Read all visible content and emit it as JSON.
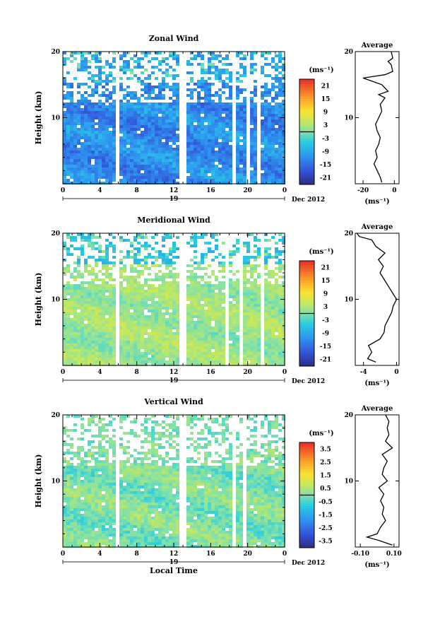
{
  "chart_data": [
    {
      "type": "heatmap",
      "title": "Zonal Wind",
      "ylabel": "Height (km)",
      "unit_label": "(ms⁻¹)",
      "x_ticks": [
        "0",
        "4",
        "8",
        "12",
        "16",
        "20",
        "0"
      ],
      "x_range": [
        0,
        24
      ],
      "y_ticks": [
        "20",
        "10"
      ],
      "y_range": [
        0,
        20
      ],
      "date_label": "19",
      "month_label": "Dec 2012",
      "colorbar": {
        "ticks": [
          "21",
          "15",
          "9",
          "3",
          "-3",
          "-9",
          "-15",
          "-21"
        ],
        "range": [
          -24,
          24
        ]
      },
      "base_value": -12,
      "base_spread": 7,
      "upper_values": [
        -6,
        -3,
        -10
      ],
      "gaps_hours": [
        [
          5.8,
          6.3
        ],
        [
          12.8,
          13.3
        ],
        [
          18.3,
          18.8
        ],
        [
          19.9,
          20.4
        ],
        [
          21.0,
          21.5
        ]
      ],
      "average": {
        "title": "Average",
        "xlabel": "(ms⁻¹)",
        "x_ticks": [
          "-20",
          "0"
        ],
        "x_range": [
          -25,
          3
        ],
        "y_ticks": [
          "20",
          "10"
        ],
        "profile": [
          [
            0.2,
            -8
          ],
          [
            1,
            -9
          ],
          [
            2,
            -11
          ],
          [
            3,
            -13
          ],
          [
            4,
            -11
          ],
          [
            5,
            -12
          ],
          [
            6,
            -10
          ],
          [
            7,
            -9
          ],
          [
            8,
            -11
          ],
          [
            9,
            -12
          ],
          [
            10,
            -10
          ],
          [
            11,
            -8
          ],
          [
            12,
            -9
          ],
          [
            13,
            -6
          ],
          [
            13.5,
            -10
          ],
          [
            14,
            -4
          ],
          [
            15,
            -8
          ],
          [
            16,
            -20
          ],
          [
            16.5,
            -6
          ],
          [
            17,
            -1
          ],
          [
            18,
            -2
          ],
          [
            18.5,
            -4
          ],
          [
            19,
            -1
          ],
          [
            20,
            -2
          ]
        ]
      }
    },
    {
      "type": "heatmap",
      "title": "Meridional Wind",
      "ylabel": "Height (km)",
      "unit_label": "(ms⁻¹)",
      "x_ticks": [
        "0",
        "4",
        "8",
        "12",
        "16",
        "20",
        "0"
      ],
      "x_range": [
        0,
        24
      ],
      "y_ticks": [
        "20",
        "10"
      ],
      "y_range": [
        0,
        20
      ],
      "date_label": "19",
      "month_label": "Dec 2012",
      "colorbar": {
        "ticks": [
          "21",
          "15",
          "9",
          "3",
          "-3",
          "-9",
          "-15",
          "-21"
        ],
        "range": [
          -24,
          24
        ]
      },
      "base_value": 2,
      "base_spread": 5,
      "upper_values": [
        -4,
        0,
        -6
      ],
      "gaps_hours": [
        [
          5.8,
          6.3
        ],
        [
          12.8,
          13.3
        ],
        [
          17.7,
          18.1
        ],
        [
          19.2,
          19.6
        ],
        [
          21.3,
          21.7
        ]
      ],
      "average": {
        "title": "Average",
        "xlabel": "(ms⁻¹)",
        "x_ticks": [
          "-4",
          "0"
        ],
        "x_range": [
          -5,
          0.3
        ],
        "y_ticks": [
          "20",
          "10"
        ],
        "profile": [
          [
            0.5,
            -2.5
          ],
          [
            1,
            -3.5
          ],
          [
            2,
            -3
          ],
          [
            3,
            -3.4
          ],
          [
            4,
            -2
          ],
          [
            5,
            -1.5
          ],
          [
            6,
            -1.4
          ],
          [
            7,
            -1
          ],
          [
            8,
            -0.6
          ],
          [
            9,
            -0.4
          ],
          [
            10,
            0
          ],
          [
            11,
            -0.5
          ],
          [
            12,
            -1
          ],
          [
            13,
            -1.5
          ],
          [
            14,
            -2
          ],
          [
            15,
            -1.6
          ],
          [
            16,
            -2.2
          ],
          [
            17,
            -1.4
          ],
          [
            18,
            -2.5
          ],
          [
            19,
            -3
          ],
          [
            19.5,
            -4.5
          ],
          [
            20,
            -4.8
          ]
        ]
      }
    },
    {
      "type": "heatmap",
      "title": "Vertical Wind",
      "ylabel": "Height (km)",
      "xlabel": "Local Time",
      "unit_label": "(ms⁻¹)",
      "x_ticks": [
        "0",
        "4",
        "8",
        "12",
        "16",
        "20",
        "0"
      ],
      "x_range": [
        0,
        24
      ],
      "y_ticks": [
        "20",
        "10"
      ],
      "y_range": [
        0,
        20
      ],
      "date_label": "19",
      "month_label": "Dec 2012",
      "colorbar": {
        "ticks": [
          "3.5",
          "2.5",
          "1.5",
          "0.5",
          "-0.5",
          "-1.5",
          "-2.5",
          "-3.5"
        ],
        "range": [
          -4,
          4
        ]
      },
      "base_value": 0,
      "base_spread": 0.9,
      "upper_values": [
        0,
        0.1,
        -0.1
      ],
      "gaps_hours": [
        [
          5.8,
          6.3
        ],
        [
          12.8,
          13.3
        ],
        [
          18.3,
          18.8
        ],
        [
          19.5,
          20.0
        ]
      ],
      "average": {
        "title": "Average",
        "xlabel": "(ms⁻¹)",
        "x_ticks": [
          "-0.10",
          "0.10"
        ],
        "x_range": [
          -0.13,
          0.13
        ],
        "y_ticks": [
          "20",
          "10"
        ],
        "profile": [
          [
            0.3,
            0.09
          ],
          [
            1,
            0.01
          ],
          [
            1.5,
            -0.06
          ],
          [
            2,
            0.0
          ],
          [
            3,
            0.02
          ],
          [
            4,
            0.05
          ],
          [
            5,
            0.03
          ],
          [
            6,
            0.04
          ],
          [
            7,
            0.02
          ],
          [
            8,
            0.04
          ],
          [
            9,
            0.01
          ],
          [
            10,
            0.06
          ],
          [
            11,
            0.03
          ],
          [
            12,
            0.04
          ],
          [
            13,
            0.06
          ],
          [
            14,
            0.03
          ],
          [
            15,
            0.09
          ],
          [
            16,
            0.05
          ],
          [
            17,
            0.07
          ],
          [
            18,
            0.06
          ],
          [
            19,
            0.07
          ],
          [
            20,
            0.05
          ]
        ]
      }
    }
  ]
}
